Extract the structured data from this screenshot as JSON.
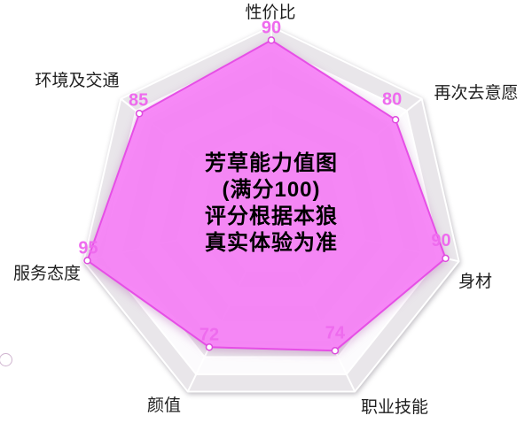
{
  "chart_data": {
    "type": "radar",
    "title_lines": [
      "芳草能力值图",
      "(满分100)",
      "评分根据本狼",
      "真实体验为准"
    ],
    "max": 100,
    "axes_count": 7,
    "indicators": [
      {
        "label": "性价比",
        "value": 90
      },
      {
        "label": "再次去意愿",
        "value": 80
      },
      {
        "label": "身材",
        "value": 90
      },
      {
        "label": "职业技能",
        "value": 74
      },
      {
        "label": "颜值",
        "value": 72
      },
      {
        "label": "服务态度",
        "value": 95
      },
      {
        "label": "环境及交通",
        "value": 85
      }
    ],
    "legend": {
      "icon": "circle-outline"
    },
    "colors": {
      "series_fill": "#f883f8",
      "series_stroke": "#e64fe6",
      "marker_fill": "#ffffff",
      "marker_stroke": "#dd4bdd",
      "value_label": "#ee6bee",
      "grid_band_gray": "#e9e6ea",
      "grid_band_white": "#fcfbfd",
      "grid_line": "#ffffff",
      "axis_label": "#1f1f1f",
      "title": "#000000",
      "legend_stroke": "#cfb4cf"
    },
    "layout_hints": {
      "grid": "heptagon, 10 alternating bands",
      "legend_position": "left edge, clipped"
    }
  }
}
